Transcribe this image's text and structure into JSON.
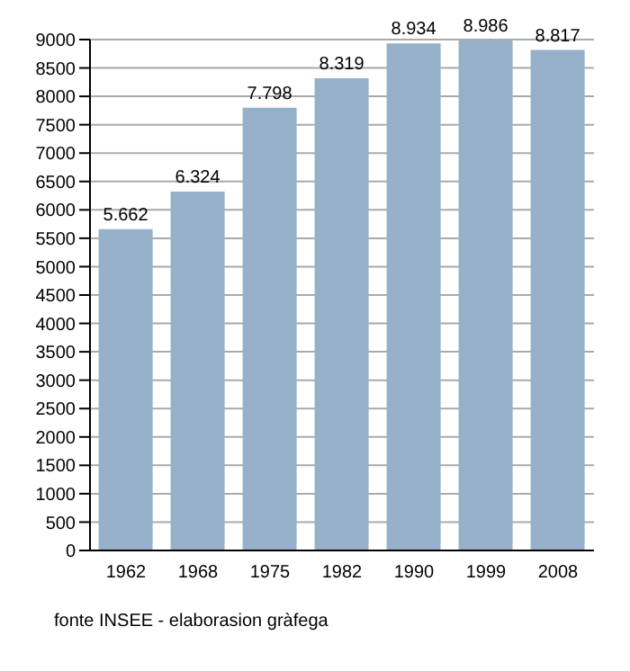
{
  "chart_data": {
    "type": "bar",
    "categories": [
      "1962",
      "1968",
      "1975",
      "1982",
      "1990",
      "1999",
      "2008"
    ],
    "values": [
      5662,
      6324,
      7798,
      8319,
      8934,
      8986,
      8817
    ],
    "value_labels": [
      "5.662",
      "6.324",
      "7.798",
      "8.319",
      "8.934",
      "8.986",
      "8.817"
    ],
    "color": "#96b0c9",
    "ylim": [
      0,
      9000
    ],
    "yticks": [
      0,
      500,
      1000,
      1500,
      2000,
      2500,
      3000,
      3500,
      4000,
      4500,
      5000,
      5500,
      6000,
      6500,
      7000,
      7500,
      8000,
      8500,
      9000
    ],
    "grid": "y",
    "annotations": [
      "fonte INSEE - elaborasion gràfega"
    ]
  }
}
